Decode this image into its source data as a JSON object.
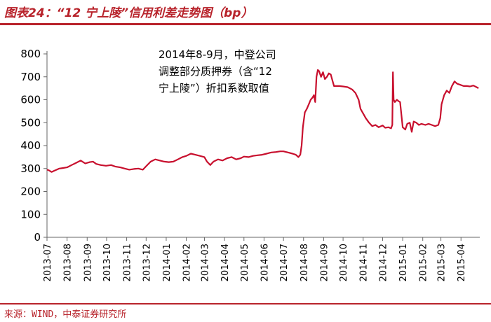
{
  "header": {
    "title": "图表24：“12 宁上陵”信用利差走势图（bp）"
  },
  "footer": {
    "source": "来源：WIND，中泰证券研究所"
  },
  "colors": {
    "accent": "#b8232b",
    "line": "#c8102e",
    "axis": "#666666"
  },
  "chart_data": {
    "type": "line",
    "title": "“12 宁上陵”信用利差走势图（bp）",
    "xlabel": "",
    "ylabel": "",
    "ylim": [
      0,
      800
    ],
    "yticks": [
      0,
      100,
      200,
      300,
      400,
      500,
      600,
      700,
      800
    ],
    "xlim": [
      "2013-07-01",
      "2015-04-30"
    ],
    "xticks": [
      "2013-07",
      "2013-08",
      "2013-09",
      "2013-10",
      "2013-11",
      "2013-12",
      "2014-01",
      "2014-02",
      "2014-03",
      "2014-04",
      "2014-05",
      "2014-06",
      "2014-07",
      "2014-08",
      "2014-09",
      "2014-10",
      "2014-11",
      "2014-12",
      "2015-01",
      "2015-02",
      "2015-03",
      "2015-04"
    ],
    "grid": false,
    "legend": "none",
    "series": [
      {
        "name": "",
        "x": [
          "2013-07-01",
          "2013-07-04",
          "2013-07-08",
          "2013-07-12",
          "2013-07-16",
          "2013-07-20",
          "2013-07-25",
          "2013-08-01",
          "2013-08-08",
          "2013-08-15",
          "2013-08-22",
          "2013-08-29",
          "2013-09-05",
          "2013-09-10",
          "2013-09-15",
          "2013-09-22",
          "2013-09-30",
          "2013-10-08",
          "2013-10-15",
          "2013-10-22",
          "2013-10-29",
          "2013-11-05",
          "2013-11-12",
          "2013-11-19",
          "2013-11-26",
          "2013-12-01",
          "2013-12-08",
          "2013-12-15",
          "2013-12-22",
          "2013-12-29",
          "2014-01-05",
          "2014-01-12",
          "2014-01-19",
          "2014-01-26",
          "2014-02-01",
          "2014-02-08",
          "2014-02-15",
          "2014-02-22",
          "2014-03-01",
          "2014-03-05",
          "2014-03-10",
          "2014-03-15",
          "2014-03-22",
          "2014-03-29",
          "2014-04-05",
          "2014-04-12",
          "2014-04-19",
          "2014-04-26",
          "2014-05-01",
          "2014-05-08",
          "2014-05-15",
          "2014-05-22",
          "2014-05-29",
          "2014-06-05",
          "2014-06-12",
          "2014-06-19",
          "2014-06-26",
          "2014-07-01",
          "2014-07-08",
          "2014-07-15",
          "2014-07-20",
          "2014-07-24",
          "2014-07-27",
          "2014-07-29",
          "2014-07-31",
          "2014-08-03",
          "2014-08-06",
          "2014-08-09",
          "2014-08-12",
          "2014-08-15",
          "2014-08-17",
          "2014-08-19",
          "2014-08-21",
          "2014-08-23",
          "2014-08-25",
          "2014-08-28",
          "2014-08-31",
          "2014-09-03",
          "2014-09-06",
          "2014-09-09",
          "2014-09-12",
          "2014-09-15",
          "2014-09-17",
          "2014-09-20",
          "2014-09-25",
          "2014-10-01",
          "2014-10-08",
          "2014-10-15",
          "2014-10-20",
          "2014-10-25",
          "2014-10-28",
          "2014-11-01",
          "2014-11-05",
          "2014-11-10",
          "2014-11-15",
          "2014-11-20",
          "2014-11-25",
          "2014-12-01",
          "2014-12-05",
          "2014-12-10",
          "2014-12-14",
          "2014-12-16",
          "2014-12-17",
          "2014-12-18",
          "2014-12-20",
          "2014-12-23",
          "2014-12-25",
          "2014-12-28",
          "2015-01-01",
          "2015-01-05",
          "2015-01-08",
          "2015-01-12",
          "2015-01-15",
          "2015-01-18",
          "2015-01-22",
          "2015-01-26",
          "2015-01-30",
          "2015-02-05",
          "2015-02-10",
          "2015-02-15",
          "2015-02-20",
          "2015-02-25",
          "2015-02-28",
          "2015-03-02",
          "2015-03-06",
          "2015-03-10",
          "2015-03-14",
          "2015-03-18",
          "2015-03-22",
          "2015-03-26",
          "2015-03-31",
          "2015-04-05",
          "2015-04-10",
          "2015-04-15",
          "2015-04-20",
          "2015-04-25",
          "2015-04-28"
        ],
        "values": [
          295,
          292,
          285,
          290,
          295,
          300,
          302,
          305,
          315,
          325,
          335,
          322,
          328,
          330,
          320,
          315,
          312,
          315,
          308,
          305,
          300,
          295,
          298,
          300,
          295,
          310,
          330,
          340,
          335,
          330,
          328,
          330,
          340,
          350,
          355,
          365,
          360,
          355,
          350,
          330,
          315,
          330,
          340,
          335,
          345,
          350,
          340,
          345,
          352,
          350,
          355,
          358,
          360,
          365,
          370,
          372,
          375,
          375,
          370,
          365,
          360,
          350,
          360,
          400,
          480,
          545,
          560,
          580,
          600,
          610,
          620,
          590,
          700,
          730,
          725,
          700,
          720,
          690,
          700,
          715,
          710,
          680,
          660,
          660,
          660,
          658,
          655,
          645,
          630,
          600,
          560,
          540,
          520,
          500,
          485,
          490,
          480,
          488,
          478,
          480,
          475,
          490,
          720,
          600,
          590,
          600,
          595,
          590,
          480,
          470,
          495,
          500,
          460,
          505,
          500,
          490,
          495,
          490,
          495,
          490,
          485,
          490,
          520,
          580,
          620,
          640,
          630,
          660,
          680,
          670,
          665,
          660,
          660,
          658,
          662,
          655,
          650
        ]
      }
    ],
    "annotation": {
      "lines": [
        "2014年8-9月，中登公司",
        "调整部分质押券（含“12",
        "宁上陵”）折扣系数取值"
      ]
    }
  }
}
